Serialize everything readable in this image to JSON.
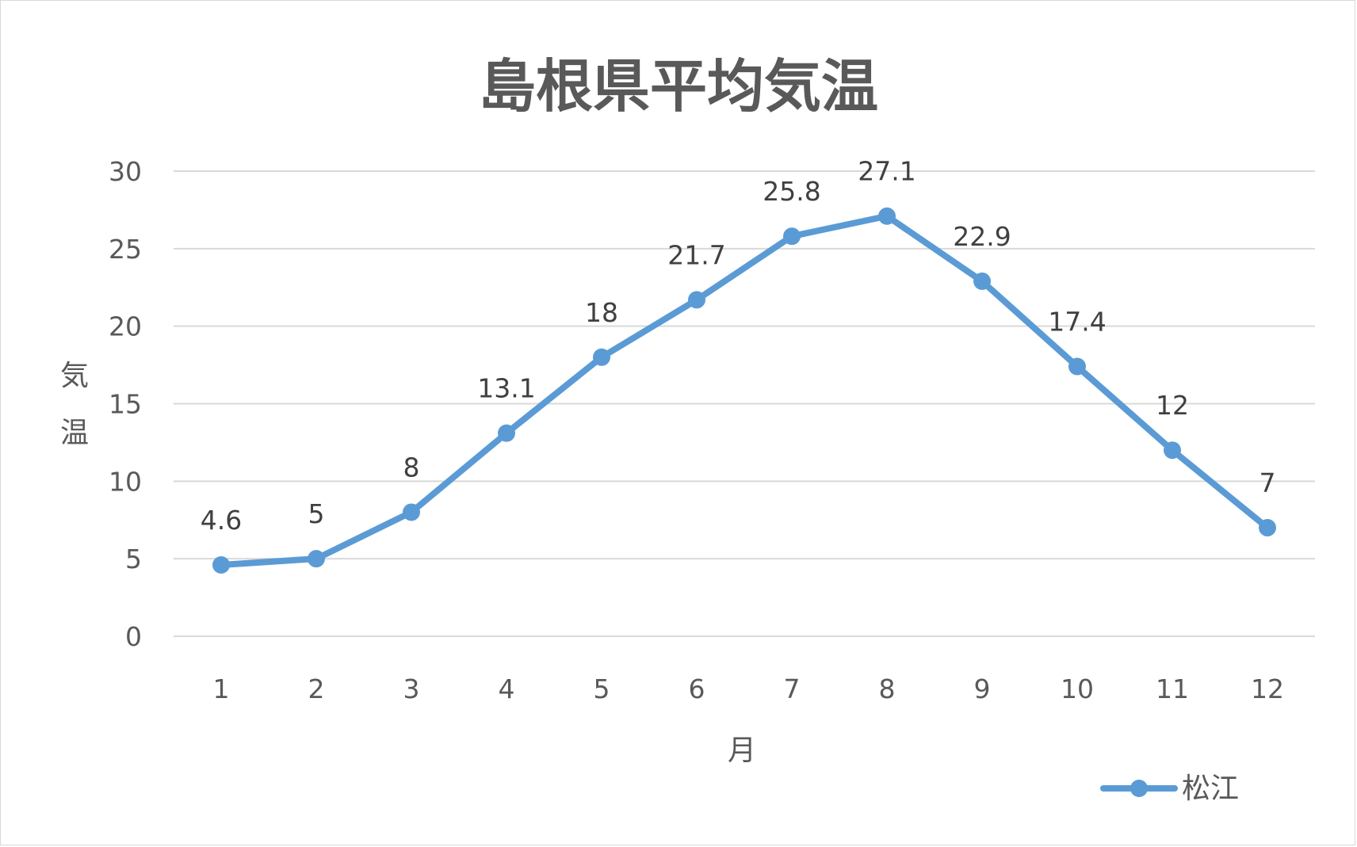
{
  "chart_data": {
    "type": "line",
    "title": "島根県平均気温",
    "xlabel": "月",
    "ylabel": "気温",
    "categories": [
      "1",
      "2",
      "3",
      "4",
      "5",
      "6",
      "7",
      "8",
      "9",
      "10",
      "11",
      "12"
    ],
    "yticks": [
      "0",
      "5",
      "10",
      "15",
      "20",
      "25",
      "30"
    ],
    "ylim": [
      0,
      30
    ],
    "grid": true,
    "legend_position": "bottom-right",
    "series": [
      {
        "name": "松江",
        "color": "#5b9bd5",
        "values": [
          4.6,
          5,
          8,
          13.1,
          18,
          21.7,
          25.8,
          27.1,
          22.9,
          17.4,
          12,
          7
        ],
        "labels": [
          "4.6",
          "5",
          "8",
          "13.1",
          "18",
          "21.7",
          "25.8",
          "27.1",
          "22.9",
          "17.4",
          "12",
          "7"
        ]
      }
    ]
  }
}
